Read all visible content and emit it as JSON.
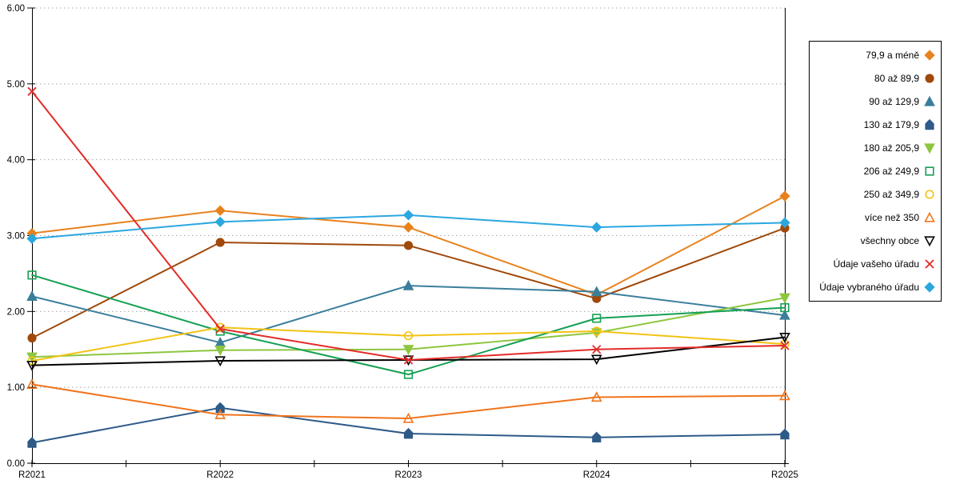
{
  "chart_data": {
    "type": "line",
    "title": "",
    "categories": [
      "R2021",
      "R2022",
      "R2023",
      "R2024",
      "R2025"
    ],
    "y_axis": {
      "min": 0,
      "max": 6,
      "step": 1,
      "tick_labels": [
        "0.00",
        "1.00",
        "2.00",
        "3.00",
        "4.00",
        "5.00",
        "6.00"
      ]
    },
    "grid": {
      "horizontal": true,
      "style": "dotted",
      "color": "#a8a8a8"
    },
    "legend": {
      "position": "right",
      "border": true,
      "marker_side": "right"
    },
    "axis_color": "#000000",
    "series": [
      {
        "name": "79,9 a méně",
        "color": "#E8821E",
        "marker": "diamond",
        "marker_filled": true,
        "values": [
          3.03,
          3.33,
          3.11,
          2.22,
          3.52
        ]
      },
      {
        "name": "80 až 89,9",
        "color": "#A0490B",
        "marker": "circle",
        "marker_filled": true,
        "values": [
          1.65,
          2.91,
          2.87,
          2.17,
          3.1
        ]
      },
      {
        "name": "90 až 129,9",
        "color": "#3A7E9B",
        "marker": "triangle-up",
        "marker_filled": true,
        "values": [
          2.2,
          1.59,
          2.34,
          2.26,
          1.95
        ]
      },
      {
        "name": "130 až 179,9",
        "color": "#2E5A88",
        "marker": "pentagon",
        "marker_filled": true,
        "values": [
          0.27,
          0.73,
          0.39,
          0.34,
          0.38
        ]
      },
      {
        "name": "180 až 205,9",
        "color": "#8DC63F",
        "marker": "triangle-down",
        "marker_filled": true,
        "values": [
          1.4,
          1.49,
          1.5,
          1.72,
          2.18
        ]
      },
      {
        "name": "206 až 249,9",
        "color": "#16A053",
        "marker": "square",
        "marker_filled": false,
        "values": [
          2.48,
          1.74,
          1.17,
          1.91,
          2.05
        ]
      },
      {
        "name": "250 až 349,9",
        "color": "#F2C314",
        "marker": "circle",
        "marker_filled": false,
        "values": [
          1.35,
          1.79,
          1.68,
          1.74,
          1.57
        ]
      },
      {
        "name": "více než 350",
        "color": "#F0741C",
        "marker": "triangle-up",
        "marker_filled": false,
        "values": [
          1.04,
          0.64,
          0.59,
          0.87,
          0.89
        ]
      },
      {
        "name": "všechny obce",
        "color": "#000000",
        "marker": "triangle-down",
        "marker_filled": false,
        "values": [
          1.29,
          1.35,
          1.36,
          1.37,
          1.66
        ]
      },
      {
        "name": "Údaje vašeho úřadu",
        "color": "#E32B28",
        "marker": "x",
        "marker_filled": false,
        "values": [
          4.9,
          1.77,
          1.36,
          1.5,
          1.55
        ]
      },
      {
        "name": "Údaje vybraného úřadu",
        "color": "#2BA7E0",
        "marker": "diamond",
        "marker_filled": true,
        "values": [
          2.96,
          3.18,
          3.27,
          3.11,
          3.17
        ]
      }
    ]
  }
}
